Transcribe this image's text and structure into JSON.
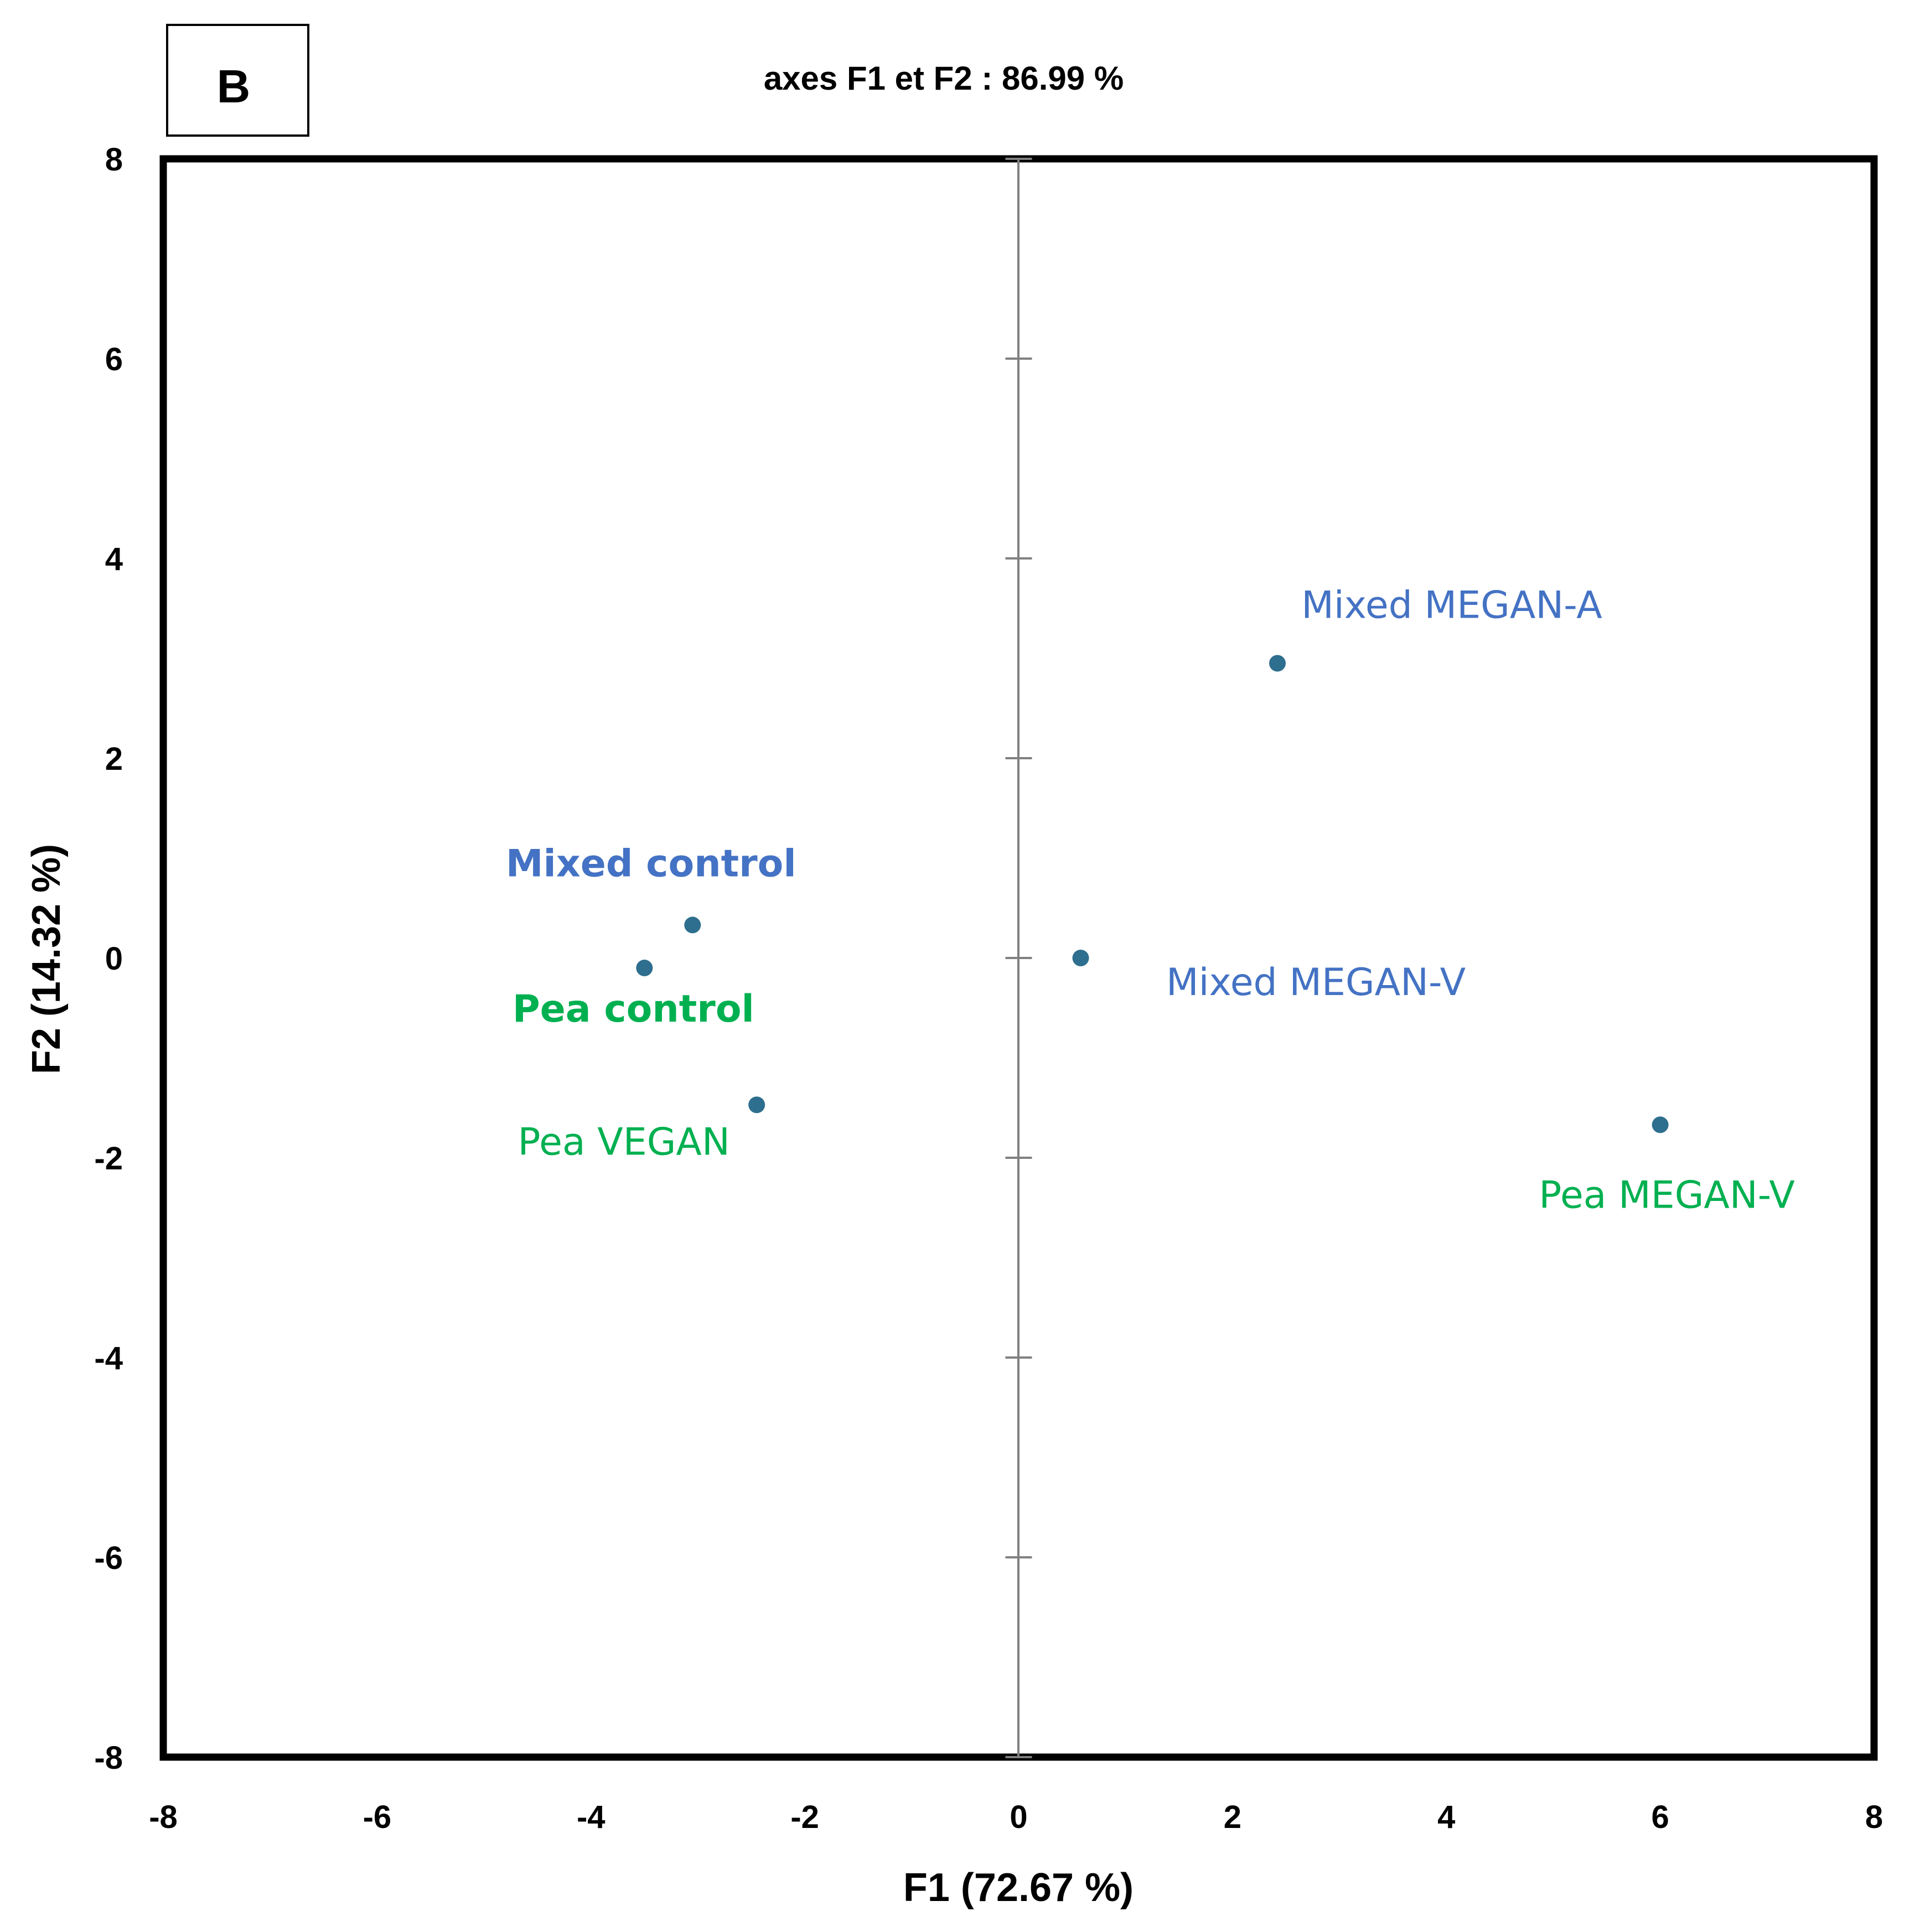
{
  "panel_label": "B",
  "chart_data": {
    "type": "scatter",
    "title": "axes F1 et F2 : 86.99 %",
    "xlabel": "F1 (72.67 %)",
    "ylabel": "F2 (14.32 %)",
    "xlim": [
      -8,
      8
    ],
    "ylim": [
      -8,
      8
    ],
    "xticks": [
      "-8",
      "-6",
      "-4",
      "-2",
      "0",
      "2",
      "4",
      "6",
      "8"
    ],
    "yticks": [
      "8",
      "6",
      "4",
      "2",
      "0",
      "-2",
      "-4",
      "-6",
      "-8"
    ],
    "grid": false,
    "point_color": "#2e6e8e",
    "axis_line_color": "#808080",
    "points": [
      {
        "name": "Mixed control",
        "x": -3.05,
        "y": 0.33,
        "color": "#4472c4",
        "bold": true,
        "anchor": "above"
      },
      {
        "name": "Pea control",
        "x": -3.5,
        "y": -0.1,
        "color": "#00b050",
        "bold": true,
        "anchor": "below"
      },
      {
        "name": "Pea VEGAN",
        "x": -2.45,
        "y": -1.47,
        "color": "#00b050",
        "bold": false,
        "anchor": "below-left"
      },
      {
        "name": "Mixed MEGAN-A",
        "x": 2.42,
        "y": 2.95,
        "color": "#4472c4",
        "bold": false,
        "anchor": "above-right"
      },
      {
        "name": "Mixed MEGAN-V",
        "x": 0.58,
        "y": 0.0,
        "color": "#4472c4",
        "bold": false,
        "anchor": "below-right"
      },
      {
        "name": "Pea MEGAN-V",
        "x": 6.0,
        "y": -1.67,
        "color": "#00b050",
        "bold": false,
        "anchor": "below"
      }
    ]
  }
}
